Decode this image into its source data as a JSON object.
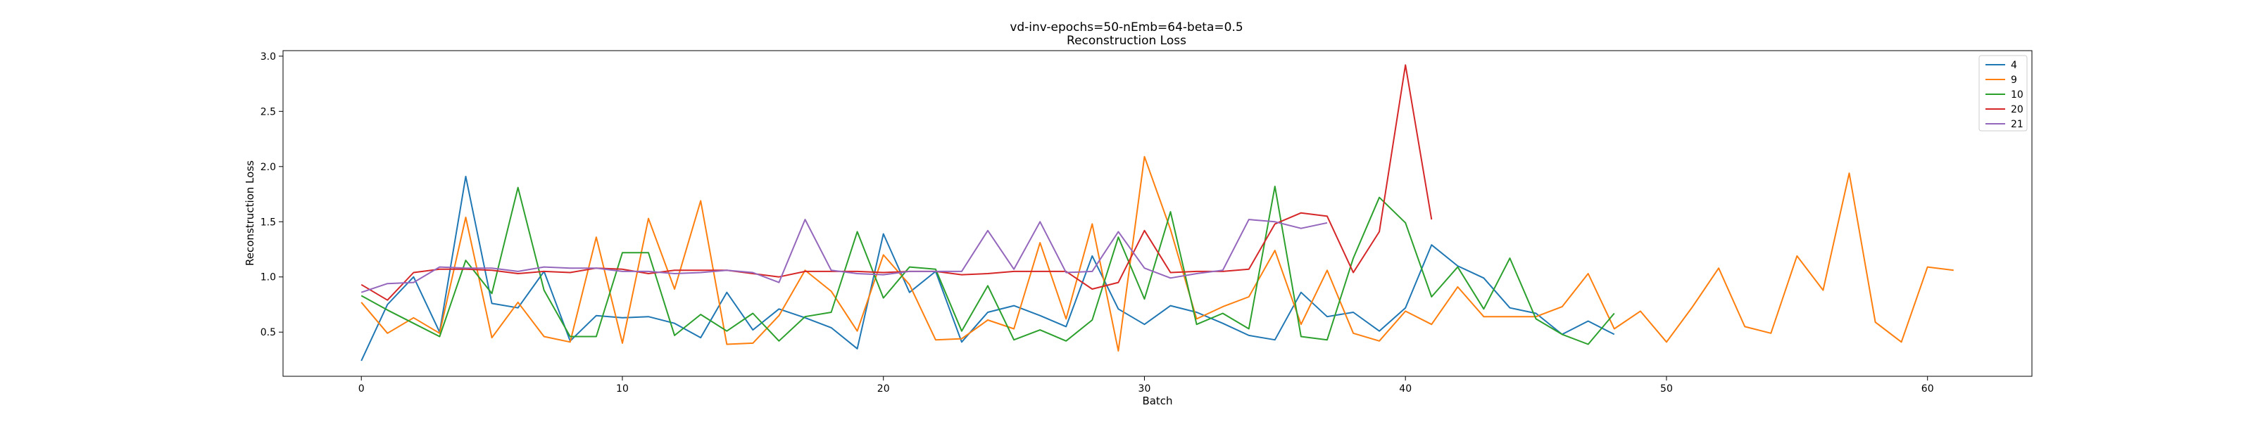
{
  "chart_data": {
    "type": "line",
    "title": "vd-inv-epochs=50-nEmb=64-beta=0.5",
    "subtitle": "Reconstruction Loss",
    "xlabel": "Batch",
    "ylabel": "Reconstruction Loss",
    "xlim": [
      -3,
      64
    ],
    "ylim": [
      0.1,
      3.05
    ],
    "xticks": [
      0,
      10,
      20,
      30,
      40,
      50,
      60
    ],
    "yticks": [
      0.5,
      1.0,
      1.5,
      2.0,
      2.5,
      3.0
    ],
    "ytick_labels": [
      "0.5",
      "1.0",
      "1.5",
      "2.0",
      "2.5",
      "3.0"
    ],
    "grid": false,
    "legend_position": "top-right",
    "series": [
      {
        "name": "4",
        "color": "#1f77b4",
        "x_start": 0,
        "values": [
          0.24,
          0.75,
          1.0,
          0.5,
          1.91,
          0.76,
          0.72,
          1.05,
          0.42,
          0.65,
          0.63,
          0.64,
          0.58,
          0.45,
          0.86,
          0.52,
          0.71,
          0.63,
          0.54,
          0.35,
          1.39,
          0.86,
          1.05,
          0.41,
          0.68,
          0.74,
          0.65,
          0.55,
          1.19,
          0.71,
          0.57,
          0.74,
          0.68,
          0.58,
          0.47,
          0.43,
          0.86,
          0.64,
          0.68,
          0.51,
          0.72,
          1.29,
          1.1,
          0.99,
          0.72,
          0.67,
          0.48,
          0.6,
          0.48
        ]
      },
      {
        "name": "9",
        "color": "#ff7f0e",
        "x_start": 0,
        "values": [
          0.77,
          0.49,
          0.63,
          0.49,
          1.54,
          0.45,
          0.77,
          0.46,
          0.41,
          1.36,
          0.4,
          1.53,
          0.89,
          1.69,
          0.39,
          0.4,
          0.65,
          1.06,
          0.87,
          0.51,
          1.2,
          0.93,
          0.43,
          0.44,
          0.61,
          0.53,
          1.31,
          0.62,
          1.48,
          0.33,
          2.09,
          1.43,
          0.62,
          0.73,
          0.82,
          1.24,
          0.57,
          1.06,
          0.49,
          0.42,
          0.69,
          0.57,
          0.91,
          0.64,
          0.64,
          0.64,
          0.73,
          1.03,
          0.53,
          0.69,
          0.41,
          0.73,
          1.08,
          0.55,
          0.49,
          1.19,
          0.88,
          1.94,
          0.59,
          0.41,
          1.09,
          1.06
        ]
      },
      {
        "name": "10",
        "color": "#2ca02c",
        "x_start": 0,
        "values": [
          0.83,
          0.7,
          0.58,
          0.46,
          1.15,
          0.85,
          1.81,
          0.88,
          0.46,
          0.46,
          1.22,
          1.22,
          0.47,
          0.66,
          0.51,
          0.67,
          0.42,
          0.64,
          0.68,
          1.41,
          0.81,
          1.09,
          1.07,
          0.51,
          0.92,
          0.43,
          0.52,
          0.42,
          0.61,
          1.36,
          0.8,
          1.59,
          0.57,
          0.67,
          0.53,
          1.82,
          0.46,
          0.43,
          1.17,
          1.72,
          1.49,
          0.82,
          1.09,
          0.71,
          1.17,
          0.62,
          0.48,
          0.39,
          0.67
        ]
      },
      {
        "name": "20",
        "color": "#d62728",
        "x_start": 0,
        "values": [
          0.93,
          0.79,
          1.04,
          1.07,
          1.07,
          1.06,
          1.03,
          1.05,
          1.04,
          1.08,
          1.07,
          1.03,
          1.06,
          1.06,
          1.06,
          1.03,
          1.0,
          1.05,
          1.05,
          1.05,
          1.04,
          1.05,
          1.05,
          1.02,
          1.03,
          1.05,
          1.05,
          1.05,
          0.89,
          0.95,
          1.42,
          1.04,
          1.05,
          1.05,
          1.07,
          1.48,
          1.58,
          1.55,
          1.04,
          1.41,
          2.92,
          1.52
        ]
      },
      {
        "name": "21",
        "color": "#9467bd",
        "x_start": 0,
        "values": [
          0.86,
          0.94,
          0.95,
          1.09,
          1.08,
          1.08,
          1.05,
          1.09,
          1.08,
          1.08,
          1.05,
          1.05,
          1.03,
          1.04,
          1.06,
          1.04,
          0.95,
          1.52,
          1.06,
          1.03,
          1.02,
          1.05,
          1.05,
          1.05,
          1.42,
          1.07,
          1.5,
          1.04,
          1.05,
          1.41,
          1.08,
          0.99,
          1.03,
          1.06,
          1.52,
          1.5,
          1.44,
          1.49
        ]
      }
    ]
  }
}
